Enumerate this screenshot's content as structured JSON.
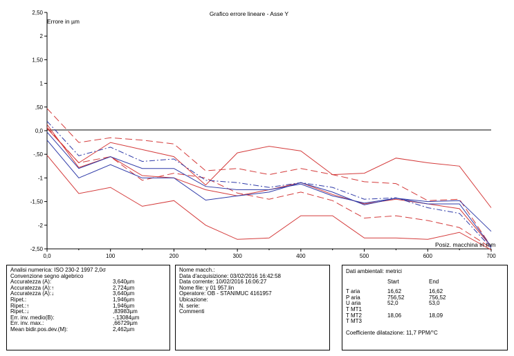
{
  "chart_data": {
    "type": "line",
    "title": "Grafico errore lineare - Asse Y",
    "ylabel": "Errore in µm",
    "xlabel": "Posiz. macchina in mm",
    "xlim": [
      0,
      700
    ],
    "ylim": [
      -2.5,
      2.5
    ],
    "x_ticks": [
      "0,0",
      "100",
      "200",
      "300",
      "400",
      "500",
      "600",
      "700"
    ],
    "y_ticks": [
      {
        "v": 2.5,
        "label": "2,50"
      },
      {
        "v": 2,
        "label": "2"
      },
      {
        "v": 1.5,
        "label": "1,50"
      },
      {
        "v": 1,
        "label": "1"
      },
      {
        "v": 0.5,
        "label": ",50"
      },
      {
        "v": 0,
        "label": "0,0"
      },
      {
        "v": -0.5,
        "label": "-,50"
      },
      {
        "v": -1,
        "label": "-1"
      },
      {
        "v": -1.5,
        "label": "-1,50"
      },
      {
        "v": -2,
        "label": "-2"
      },
      {
        "v": -2.5,
        "label": "-2,50"
      }
    ],
    "x": [
      0,
      50,
      100,
      150,
      200,
      250,
      300,
      350,
      400,
      450,
      500,
      550,
      600,
      650,
      700
    ],
    "series": [
      {
        "color": "#d43a3a",
        "dash": "",
        "values": [
          0.13,
          -0.78,
          -0.55,
          -0.95,
          -1.0,
          -1.25,
          -1.38,
          -1.25,
          -1.1,
          -1.35,
          -1.55,
          -1.45,
          -1.55,
          -1.65,
          -2.45
        ]
      },
      {
        "color": "#d43a3a",
        "dash": "",
        "values": [
          -0.52,
          -1.33,
          -1.2,
          -1.6,
          -1.48,
          -2.0,
          -2.3,
          -2.27,
          -1.8,
          -1.8,
          -2.27,
          -2.27,
          -2.3,
          -2.15,
          -2.52
        ]
      },
      {
        "color": "#d43a3a",
        "dash": "",
        "values": [
          0.05,
          -0.68,
          -0.25,
          -0.4,
          -0.55,
          -1.15,
          -0.47,
          -0.33,
          -0.43,
          -0.93,
          -0.9,
          -0.58,
          -0.68,
          -0.75,
          -1.63
        ]
      },
      {
        "color": "#d43a3a",
        "dash": "10 5",
        "values": [
          0.47,
          -0.25,
          -0.15,
          -0.2,
          -0.28,
          -0.85,
          -0.8,
          -0.93,
          -0.8,
          -0.93,
          -1.08,
          -1.12,
          -1.48,
          -1.45,
          -2.45
        ]
      },
      {
        "color": "#d43a3a",
        "dash": "10 5",
        "values": [
          0.07,
          -0.68,
          -0.55,
          -1.05,
          -0.9,
          -1.0,
          -1.32,
          -1.45,
          -1.3,
          -1.48,
          -1.85,
          -1.8,
          -1.9,
          -2.05,
          -2.48
        ]
      },
      {
        "color": "#2e3aa8",
        "dash": "",
        "values": [
          -0.03,
          -0.8,
          -0.55,
          -0.8,
          -0.8,
          -1.18,
          -1.25,
          -1.25,
          -1.13,
          -1.38,
          -1.53,
          -1.43,
          -1.55,
          -1.55,
          -2.45
        ]
      },
      {
        "color": "#2e3aa8",
        "dash": "",
        "values": [
          -0.2,
          -1.0,
          -0.72,
          -1.0,
          -1.0,
          -1.47,
          -1.38,
          -1.3,
          -1.1,
          -1.3,
          -1.57,
          -1.43,
          -1.5,
          -1.48,
          -2.13
        ]
      },
      {
        "color": "#2e3aa8",
        "dash": "8 3 2 3",
        "values": [
          0.2,
          -0.53,
          -0.35,
          -0.65,
          -0.6,
          -1.05,
          -1.1,
          -1.2,
          -1.1,
          -1.2,
          -1.45,
          -1.42,
          -1.63,
          -1.75,
          -2.48
        ]
      }
    ]
  },
  "panels": {
    "analysis": {
      "rows": [
        {
          "label": "Analisi numerica:  ISO 230-2 1997 2,0σ",
          "value": ""
        },
        {
          "label": "Convenzione segno algebrico",
          "value": ""
        },
        {
          "label": "Accuratezza (A):",
          "value": "3,640µm"
        },
        {
          "label": "Accuratezza (A):↑",
          "value": "2,724µm"
        },
        {
          "label": "Accuratezza (A):↓",
          "value": "3,640µm"
        },
        {
          "label": "Ripet.:",
          "value": "1,946µm"
        },
        {
          "label": "Ripet.:↑",
          "value": "1,946µm"
        },
        {
          "label": "Ripet.:↓",
          "value": ",83983µm"
        },
        {
          "label": "Err. inv. medio(B):",
          "value": "-,13084µm"
        },
        {
          "label": "Err. inv. max.:",
          "value": ",66729µm"
        },
        {
          "label": "Mean bidir.pos.dev.(M):",
          "value": "2,462µm"
        }
      ]
    },
    "info": {
      "lines": [
        "Nome macch.:",
        "Data d'acquisizione: 03/02/2016 16:42:58",
        "Data corrente: 10/02/2016 16:06:27",
        "Nome file:  y 01 957.lin",
        "Operatore:  OB - STANIMUC 4161957",
        "Ubicazione:",
        "N. serie:",
        "Commenti"
      ]
    },
    "env": {
      "title": "Dati ambientali: metrici",
      "headers": [
        "Start",
        "End"
      ],
      "rows": [
        {
          "label": "T aria",
          "start": "16,62",
          "end": "16,62"
        },
        {
          "label": "P aria",
          "start": "756,52",
          "end": "756,52"
        },
        {
          "label": "U aria",
          "start": "52,0",
          "end": "53,0"
        },
        {
          "label": "T MT1",
          "start": "",
          "end": ""
        },
        {
          "label": "T MT2",
          "start": "18,06",
          "end": "18,09"
        },
        {
          "label": "T MT3",
          "start": "",
          "end": ""
        }
      ],
      "coeff": "Coefficiente dilatazione: 11,7 PPM/°C"
    }
  }
}
